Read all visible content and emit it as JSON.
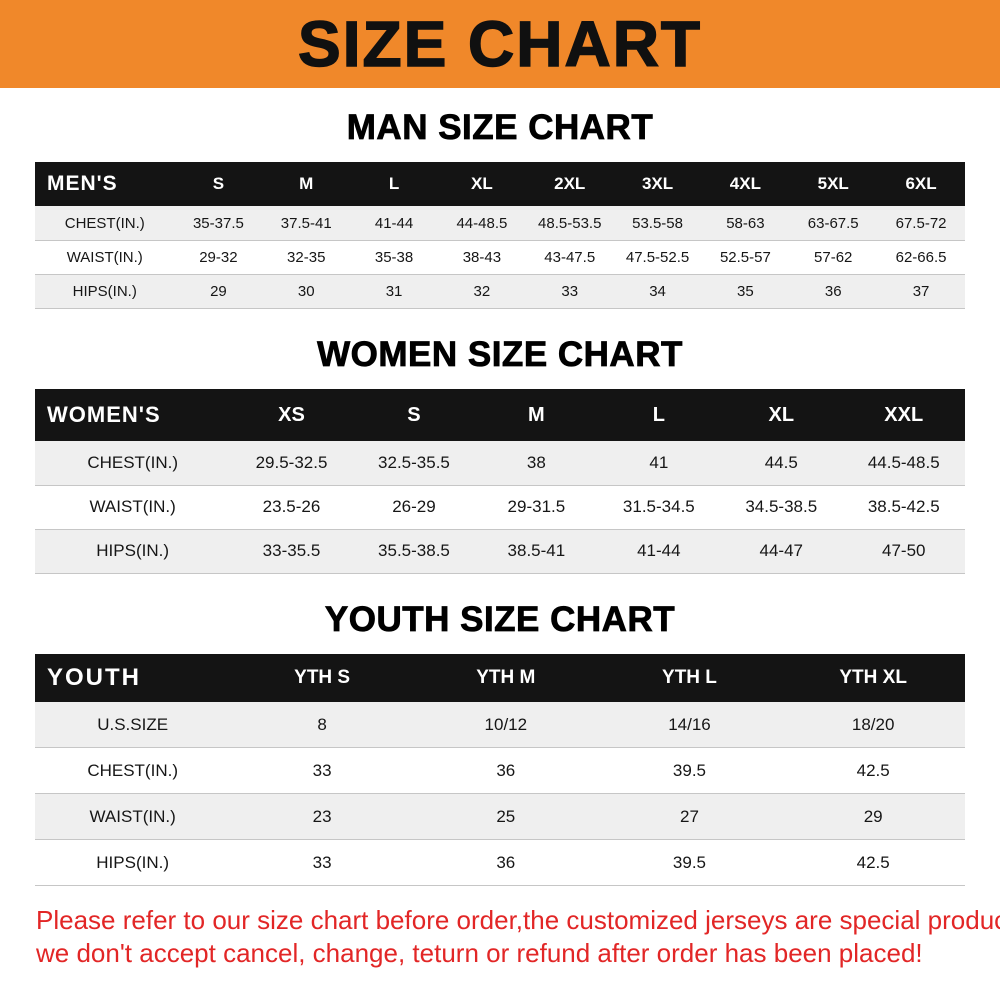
{
  "banner": {
    "title": "SIZE CHART"
  },
  "colors": {
    "banner_bg": "#f0882a",
    "table_header_bg": "#141414",
    "row_stripe": "#efefef",
    "footer_text": "#e22626"
  },
  "chart_data": [
    {
      "type": "table",
      "title": "MAN SIZE CHART",
      "label": "MEN'S",
      "columns": [
        "S",
        "M",
        "L",
        "XL",
        "2XL",
        "3XL",
        "4XL",
        "5XL",
        "6XL"
      ],
      "rows": [
        {
          "label": "CHEST(IN.)",
          "values": [
            "35-37.5",
            "37.5-41",
            "41-44",
            "44-48.5",
            "48.5-53.5",
            "53.5-58",
            "58-63",
            "63-67.5",
            "67.5-72"
          ]
        },
        {
          "label": "WAIST(IN.)",
          "values": [
            "29-32",
            "32-35",
            "35-38",
            "38-43",
            "43-47.5",
            "47.5-52.5",
            "52.5-57",
            "57-62",
            "62-66.5"
          ]
        },
        {
          "label": "HIPS(IN.)",
          "values": [
            "29",
            "30",
            "31",
            "32",
            "33",
            "34",
            "35",
            "36",
            "37"
          ]
        }
      ]
    },
    {
      "type": "table",
      "title": "WOMEN SIZE CHART",
      "label": "WOMEN'S",
      "columns": [
        "XS",
        "S",
        "M",
        "L",
        "XL",
        "XXL"
      ],
      "rows": [
        {
          "label": "CHEST(IN.)",
          "values": [
            "29.5-32.5",
            "32.5-35.5",
            "38",
            "41",
            "44.5",
            "44.5-48.5"
          ]
        },
        {
          "label": "WAIST(IN.)",
          "values": [
            "23.5-26",
            "26-29",
            "29-31.5",
            "31.5-34.5",
            "34.5-38.5",
            "38.5-42.5"
          ]
        },
        {
          "label": "HIPS(IN.)",
          "values": [
            "33-35.5",
            "35.5-38.5",
            "38.5-41",
            "41-44",
            "44-47",
            "47-50"
          ]
        }
      ]
    },
    {
      "type": "table",
      "title": "YOUTH SIZE CHART",
      "label": "YOUTH",
      "columns": [
        "YTH S",
        "YTH M",
        "YTH L",
        "YTH XL"
      ],
      "rows": [
        {
          "label": "U.S.SIZE",
          "values": [
            "8",
            "10/12",
            "14/16",
            "18/20"
          ]
        },
        {
          "label": "CHEST(IN.)",
          "values": [
            "33",
            "36",
            "39.5",
            "42.5"
          ]
        },
        {
          "label": "WAIST(IN.)",
          "values": [
            "23",
            "25",
            "27",
            "29"
          ]
        },
        {
          "label": "HIPS(IN.)",
          "values": [
            "33",
            "36",
            "39.5",
            "42.5"
          ]
        }
      ]
    }
  ],
  "footer": {
    "line1": "Please refer to our size chart before order,the customized jerseys are special products,",
    "line2": "we don't accept cancel, change, teturn or refund after order has been placed!"
  }
}
